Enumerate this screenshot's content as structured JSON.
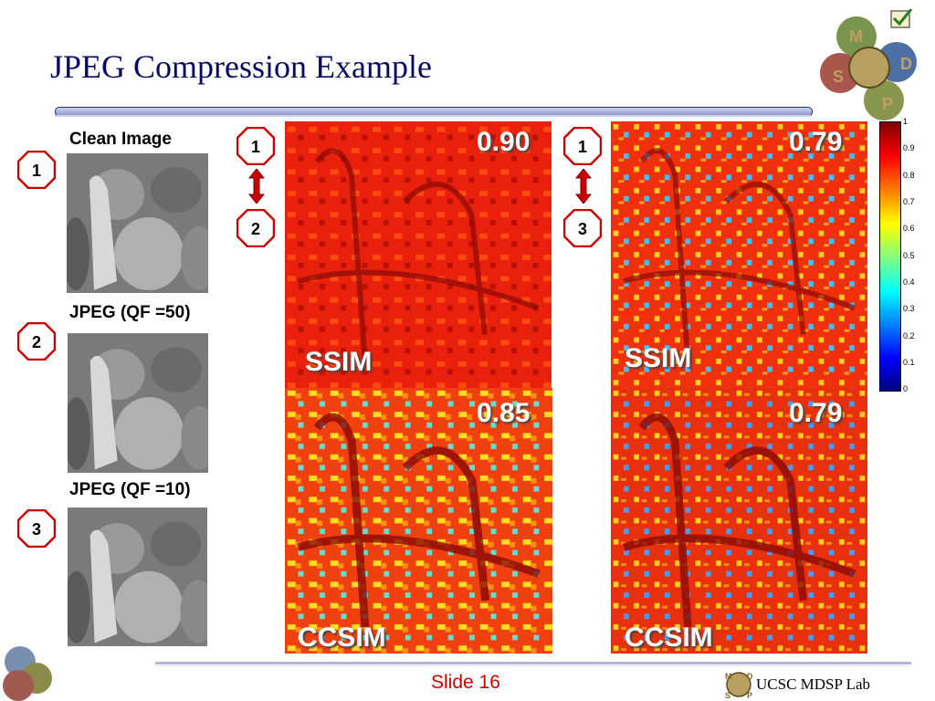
{
  "slide": {
    "title": "JPEG Compression Example",
    "footer_slide": "Slide 16",
    "footer_lab": "UCSC MDSP Lab"
  },
  "logo_letters": [
    "M",
    "D",
    "S",
    "P"
  ],
  "left_column": [
    {
      "caption": "Clean Image",
      "badge": "1"
    },
    {
      "caption": "JPEG (QF =50)",
      "badge": "2"
    },
    {
      "caption": "JPEG (QF =10)",
      "badge": "3"
    }
  ],
  "comparisons": [
    {
      "from": "1",
      "to": "2"
    },
    {
      "from": "1",
      "to": "3"
    }
  ],
  "maps": [
    {
      "metric": "SSIM",
      "score": "0.90"
    },
    {
      "metric": "SSIM",
      "score": "0.79"
    },
    {
      "metric": "CCSIM",
      "score": "0.85"
    },
    {
      "metric": "CCSIM",
      "score": "0.79"
    }
  ],
  "colorbar": {
    "ticks": [
      "1",
      "0.9",
      "0.8",
      "0.7",
      "0.6",
      "0.5",
      "0.4",
      "0.3",
      "0.2",
      "0.1",
      "0"
    ],
    "colors": [
      "#00007f",
      "#0000ff",
      "#00ffff",
      "#ffff00",
      "#ff0000",
      "#7f0000"
    ]
  }
}
